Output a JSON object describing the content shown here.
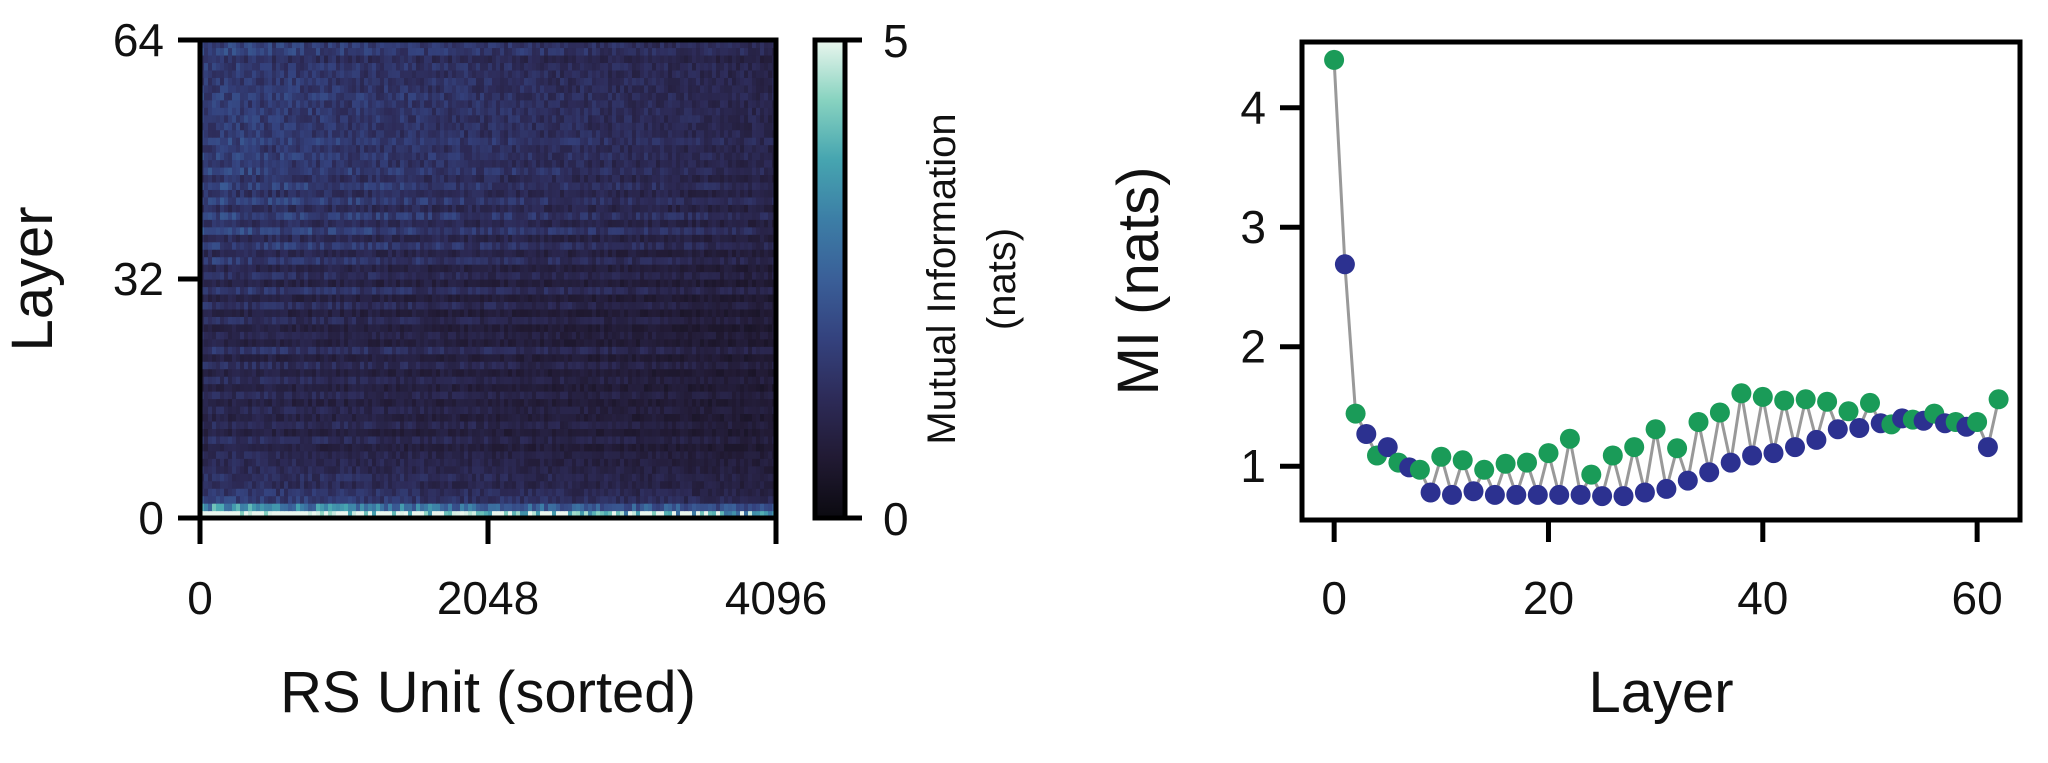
{
  "colors": {
    "cmap_stops": [
      "#0b0a10",
      "#211a33",
      "#2d2b58",
      "#34427e",
      "#3a5f98",
      "#3c7ea6",
      "#46a5b0",
      "#88d3c0",
      "#eaf6ee"
    ],
    "series_green": "#1a9b58",
    "series_blue": "#2c3190",
    "connector": "#999999",
    "axis": "#000000"
  },
  "chart_data": [
    {
      "type": "heatmap",
      "xlabel": "RS Unit (sorted)",
      "ylabel": "Layer",
      "xlim": [
        0,
        4096
      ],
      "ylim": [
        0,
        64
      ],
      "x_ticks": [
        "0",
        "2048",
        "4096"
      ],
      "y_ticks": [
        "0",
        "32",
        "64"
      ],
      "colorbar": {
        "label_line1": "Mutual Information",
        "label_line2": "(nats)",
        "range": [
          0,
          5
        ],
        "ticks": [
          "0",
          "5"
        ]
      },
      "layer_mean_mi": [
        4.4,
        2.69,
        1.44,
        1.27,
        1.09,
        1.16,
        1.03,
        0.99,
        0.97,
        0.78,
        1.08,
        0.76,
        1.05,
        0.79,
        0.97,
        0.76,
        1.02,
        0.76,
        1.03,
        0.76,
        1.11,
        0.76,
        1.23,
        0.76,
        0.93,
        0.75,
        1.09,
        0.75,
        1.16,
        0.78,
        1.31,
        0.81,
        1.15,
        0.88,
        1.37,
        0.95,
        1.45,
        1.03,
        1.61,
        1.09,
        1.58,
        1.11,
        1.55,
        1.16,
        1.56,
        1.22,
        1.54,
        1.31,
        1.46,
        1.32,
        1.53,
        1.36,
        1.35,
        1.4,
        1.39,
        1.38,
        1.44,
        1.36,
        1.37,
        1.33,
        1.37,
        1.16,
        1.56,
        1.5
      ],
      "description_note": ""
    },
    {
      "type": "scatter",
      "xlabel": "Layer",
      "ylabel": "MI (nats)",
      "xlim": [
        -3,
        64
      ],
      "ylim": [
        0.55,
        4.55
      ],
      "x_ticks": [
        0,
        20,
        40,
        60
      ],
      "y_ticks": [
        1,
        2,
        3,
        4
      ],
      "x": [
        0,
        1,
        2,
        3,
        4,
        5,
        6,
        7,
        8,
        9,
        10,
        11,
        12,
        13,
        14,
        15,
        16,
        17,
        18,
        19,
        20,
        21,
        22,
        23,
        24,
        25,
        26,
        27,
        28,
        29,
        30,
        31,
        32,
        33,
        34,
        35,
        36,
        37,
        38,
        39,
        40,
        41,
        42,
        43,
        44,
        45,
        46,
        47,
        48,
        49,
        50,
        51,
        52,
        53,
        54,
        55,
        56,
        57,
        58,
        59,
        60,
        61,
        62
      ],
      "y": [
        4.4,
        2.69,
        1.44,
        1.27,
        1.09,
        1.16,
        1.03,
        0.99,
        0.97,
        0.78,
        1.08,
        0.76,
        1.05,
        0.79,
        0.97,
        0.76,
        1.02,
        0.76,
        1.03,
        0.76,
        1.11,
        0.76,
        1.23,
        0.76,
        0.93,
        0.75,
        1.09,
        0.75,
        1.16,
        0.78,
        1.31,
        0.81,
        1.15,
        0.88,
        1.37,
        0.95,
        1.45,
        1.03,
        1.61,
        1.09,
        1.58,
        1.11,
        1.55,
        1.16,
        1.56,
        1.22,
        1.54,
        1.31,
        1.46,
        1.32,
        1.53,
        1.36,
        1.35,
        1.4,
        1.39,
        1.38,
        1.44,
        1.36,
        1.37,
        1.33,
        1.37,
        1.16,
        1.56
      ]
    }
  ]
}
